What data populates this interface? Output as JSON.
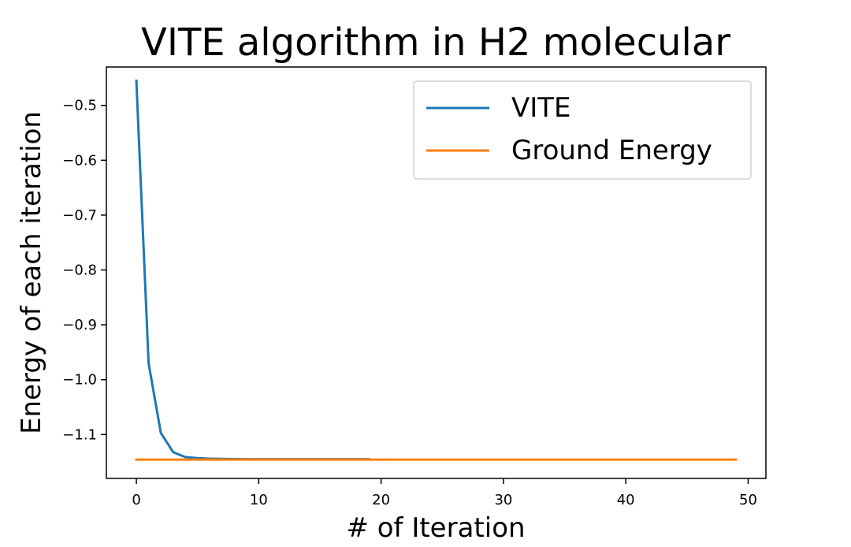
{
  "chart_data": {
    "type": "line",
    "title": "VITE algorithm in H2 molecular",
    "xlabel": "# of Iteration",
    "ylabel": "Energy of each iteration",
    "xlim": [
      -2.45,
      51.45
    ],
    "ylim": [
      -1.18,
      -0.43
    ],
    "xticks": [
      0,
      10,
      20,
      30,
      40,
      50
    ],
    "yticks": [
      -1.1,
      -1.0,
      -0.9,
      -0.8,
      -0.7,
      -0.6,
      -0.5
    ],
    "xtick_labels": [
      "0",
      "10",
      "20",
      "30",
      "40",
      "50"
    ],
    "ytick_labels": [
      "−1.1",
      "−1.0",
      "−0.9",
      "−0.8",
      "−0.7",
      "−0.6",
      "−0.5"
    ],
    "grid": false,
    "legend_position": "top-right",
    "series": [
      {
        "name": "VITE",
        "color": "#1f77b4",
        "x": [
          0,
          1,
          2,
          3,
          4,
          5,
          6,
          7,
          8,
          9,
          10,
          11,
          12,
          13,
          14,
          15,
          16,
          17,
          18,
          19
        ],
        "values": [
          -0.455,
          -0.97,
          -1.097,
          -1.132,
          -1.141,
          -1.143,
          -1.144,
          -1.1445,
          -1.1448,
          -1.145,
          -1.145,
          -1.145,
          -1.145,
          -1.145,
          -1.145,
          -1.145,
          -1.145,
          -1.145,
          -1.145,
          -1.145
        ]
      },
      {
        "name": "Ground Energy",
        "color": "#ff7f0e",
        "x": [
          0,
          49
        ],
        "values": [
          -1.1457,
          -1.1457
        ]
      }
    ]
  }
}
